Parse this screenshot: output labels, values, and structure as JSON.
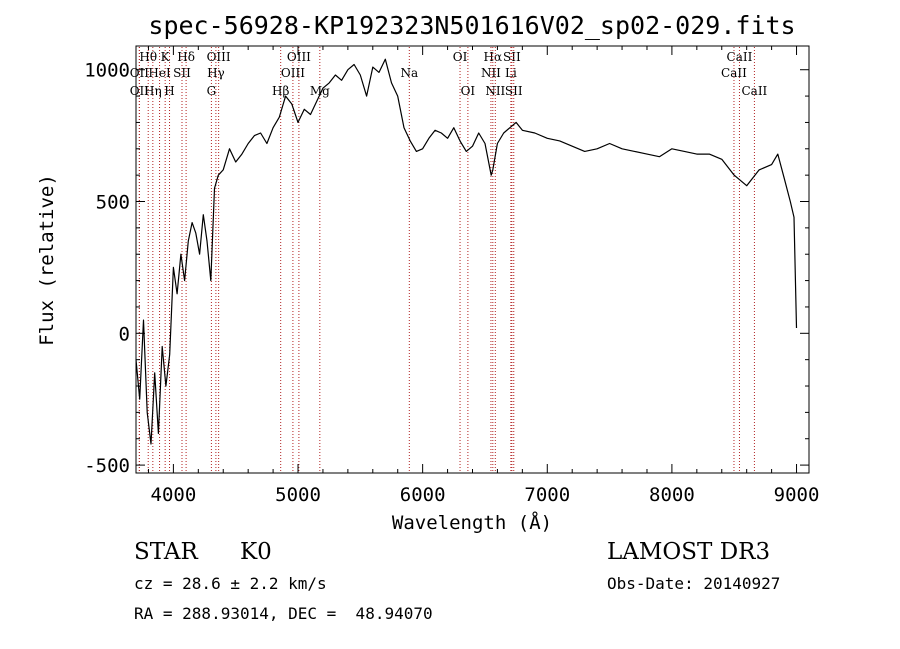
{
  "chart_data": {
    "type": "line",
    "title": "spec-56928-KP192323N501616V02_sp02-029.fits",
    "xlabel": "Wavelength (Å)",
    "ylabel": "Flux (relative)",
    "xlim": [
      3700,
      9100
    ],
    "ylim": [
      -530,
      1090
    ],
    "xticks": [
      4000,
      5000,
      6000,
      7000,
      8000,
      9000
    ],
    "yticks": [
      -500,
      0,
      500,
      1000
    ],
    "grid": false,
    "series": [
      {
        "x": [
          3700,
          3730,
          3760,
          3790,
          3820,
          3850,
          3880,
          3910,
          3940,
          3970,
          4000,
          4030,
          4060,
          4090,
          4120,
          4150,
          4180,
          4210,
          4240,
          4270,
          4300,
          4330,
          4360,
          4400,
          4450,
          4500,
          4550,
          4600,
          4650,
          4700,
          4750,
          4800,
          4850,
          4900,
          4950,
          5000,
          5050,
          5100,
          5150,
          5200,
          5250,
          5300,
          5350,
          5400,
          5450,
          5500,
          5550,
          5600,
          5650,
          5700,
          5750,
          5800,
          5850,
          5900,
          5950,
          6000,
          6050,
          6100,
          6150,
          6200,
          6250,
          6300,
          6350,
          6400,
          6450,
          6500,
          6550,
          6563,
          6600,
          6650,
          6700,
          6750,
          6800,
          6900,
          7000,
          7100,
          7200,
          7300,
          7400,
          7500,
          7600,
          7700,
          7800,
          7900,
          8000,
          8100,
          8200,
          8300,
          8400,
          8500,
          8600,
          8700,
          8800,
          8850,
          8900,
          8950,
          8980,
          9000
        ],
        "y": [
          -100,
          -250,
          50,
          -300,
          -420,
          -150,
          -380,
          -50,
          -200,
          -80,
          250,
          150,
          300,
          200,
          350,
          420,
          380,
          300,
          450,
          350,
          200,
          550,
          600,
          620,
          700,
          650,
          680,
          720,
          750,
          760,
          720,
          780,
          820,
          900,
          870,
          800,
          850,
          830,
          880,
          930,
          950,
          980,
          960,
          1000,
          1020,
          980,
          900,
          1010,
          990,
          1040,
          950,
          900,
          780,
          730,
          690,
          700,
          740,
          770,
          760,
          740,
          780,
          730,
          690,
          710,
          760,
          720,
          600,
          620,
          720,
          760,
          780,
          800,
          770,
          760,
          740,
          730,
          710,
          690,
          700,
          720,
          700,
          690,
          680,
          670,
          700,
          690,
          680,
          680,
          660,
          600,
          560,
          620,
          640,
          680,
          590,
          500,
          440,
          20
        ]
      }
    ],
    "line_marks": [
      {
        "label": "Hθ",
        "x": 3798,
        "row": 1
      },
      {
        "label": "K",
        "x": 3934,
        "row": 1
      },
      {
        "label": "Hδ",
        "x": 4102,
        "row": 1
      },
      {
        "label": "OII",
        "x": 3727,
        "row": 2
      },
      {
        "label": "HeI",
        "x": 3889,
        "row": 2
      },
      {
        "label": "SII",
        "x": 4069,
        "row": 2
      },
      {
        "label": "OII",
        "x": 3727,
        "row": 3
      },
      {
        "label": "Hη",
        "x": 3835,
        "row": 3
      },
      {
        "label": "H",
        "x": 3969,
        "row": 3
      },
      {
        "label": "OIII",
        "x": 4363,
        "row": 1
      },
      {
        "label": "Hγ",
        "x": 4341,
        "row": 2
      },
      {
        "label": "G",
        "x": 4305,
        "row": 3
      },
      {
        "label": "OIII",
        "x": 5007,
        "row": 1
      },
      {
        "label": "OIII",
        "x": 4959,
        "row": 2
      },
      {
        "label": "Hβ",
        "x": 4861,
        "row": 3
      },
      {
        "label": "Mg",
        "x": 5175,
        "row": 3
      },
      {
        "label": "Na",
        "x": 5893,
        "row": 2
      },
      {
        "label": "OI",
        "x": 6300,
        "row": 1
      },
      {
        "label": "OI",
        "x": 6363,
        "row": 3
      },
      {
        "label": "Hα",
        "x": 6563,
        "row": 1
      },
      {
        "label": "SII",
        "x": 6716,
        "row": 1
      },
      {
        "label": "NII",
        "x": 6548,
        "row": 2
      },
      {
        "label": "Li",
        "x": 6708,
        "row": 2
      },
      {
        "label": "NII",
        "x": 6583,
        "row": 3
      },
      {
        "label": "SII",
        "x": 6731,
        "row": 3
      },
      {
        "label": "CaII",
        "x": 8542,
        "row": 1
      },
      {
        "label": "CaII",
        "x": 8498,
        "row": 2
      },
      {
        "label": "CaII",
        "x": 8662,
        "row": 3
      }
    ]
  },
  "info": {
    "object_class": "STAR",
    "subclass": "K0",
    "survey": "LAMOST DR3",
    "cz": "cz = 28.6 ± 2.2 km/s",
    "obs_date": "Obs-Date: 20140927",
    "coords": "RA = 288.93014, DEC =  48.94070"
  }
}
